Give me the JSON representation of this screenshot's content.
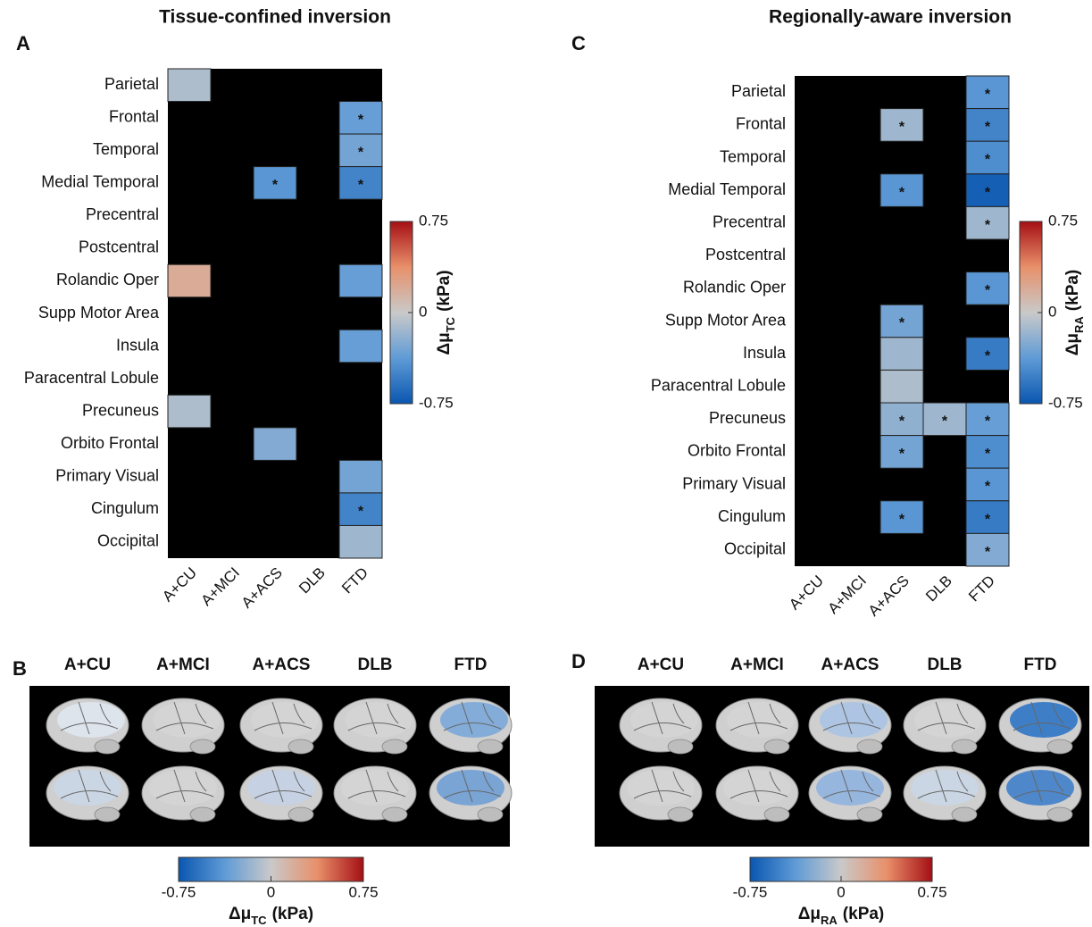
{
  "chart_data": [
    {
      "type": "heatmap",
      "panel_letter": "A",
      "title": "Tissue-confined inversion",
      "categories": [
        "A+CU",
        "A+MCI",
        "A+ACS",
        "DLB",
        "FTD"
      ],
      "rows": [
        "Parietal",
        "Frontal",
        "Temporal",
        "Medial Temporal",
        "Precentral",
        "Postcentral",
        "Rolandic Oper",
        "Supp Motor Area",
        "Insula",
        "Paracentral Lobule",
        "Precuneus",
        "Orbito Frontal",
        "Primary Visual",
        "Cingulum",
        "Occipital"
      ],
      "values": [
        [
          -0.1,
          null,
          null,
          null,
          null
        ],
        [
          null,
          null,
          null,
          null,
          -0.35
        ],
        [
          null,
          null,
          null,
          null,
          -0.3
        ],
        [
          null,
          null,
          -0.4,
          null,
          -0.5
        ],
        [
          null,
          null,
          null,
          null,
          null
        ],
        [
          null,
          null,
          null,
          null,
          null
        ],
        [
          0.2,
          null,
          null,
          null,
          -0.35
        ],
        [
          null,
          null,
          null,
          null,
          null
        ],
        [
          null,
          null,
          null,
          null,
          -0.35
        ],
        [
          null,
          null,
          null,
          null,
          null
        ],
        [
          -0.1,
          null,
          null,
          null,
          null
        ],
        [
          null,
          null,
          -0.25,
          null,
          null
        ],
        [
          null,
          null,
          null,
          null,
          -0.3
        ],
        [
          null,
          null,
          null,
          null,
          -0.5
        ],
        [
          null,
          null,
          null,
          null,
          -0.15
        ]
      ],
      "annotations": [
        [
          null,
          null,
          null,
          null,
          null
        ],
        [
          null,
          null,
          null,
          null,
          "*"
        ],
        [
          null,
          null,
          null,
          null,
          "*"
        ],
        [
          null,
          null,
          "*",
          null,
          "*"
        ],
        [
          null,
          null,
          null,
          null,
          null
        ],
        [
          null,
          null,
          null,
          null,
          null
        ],
        [
          null,
          null,
          null,
          null,
          null
        ],
        [
          null,
          null,
          null,
          null,
          null
        ],
        [
          null,
          null,
          null,
          null,
          null
        ],
        [
          null,
          null,
          null,
          null,
          null
        ],
        [
          null,
          null,
          null,
          null,
          null
        ],
        [
          null,
          null,
          null,
          null,
          null
        ],
        [
          null,
          null,
          null,
          null,
          null
        ],
        [
          null,
          null,
          null,
          null,
          "*"
        ],
        [
          null,
          null,
          null,
          null,
          null
        ]
      ],
      "colormap": [
        "#0a56b0",
        "#5f9bd6",
        "#c9c9c9",
        "#e8906a",
        "#a50f15"
      ],
      "colorbar": {
        "lim": [
          -0.75,
          0.75
        ],
        "ticks": [
          0.75,
          0,
          -0.75
        ],
        "label_main": "Δμ",
        "label_sub": "TC",
        "label_unit": "(kPa)"
      }
    },
    {
      "type": "heatmap",
      "panel_letter": "C",
      "title": "Regionally-aware inversion",
      "categories": [
        "A+CU",
        "A+MCI",
        "A+ACS",
        "DLB",
        "FTD"
      ],
      "rows": [
        "Parietal",
        "Frontal",
        "Temporal",
        "Medial Temporal",
        "Precentral",
        "Postcentral",
        "Rolandic Oper",
        "Supp Motor Area",
        "Insula",
        "Paracentral Lobule",
        "Precuneus",
        "Orbito Frontal",
        "Primary Visual",
        "Cingulum",
        "Occipital"
      ],
      "values": [
        [
          null,
          null,
          null,
          null,
          -0.4
        ],
        [
          null,
          null,
          -0.15,
          null,
          -0.5
        ],
        [
          null,
          null,
          null,
          null,
          -0.45
        ],
        [
          null,
          null,
          -0.4,
          null,
          -0.7
        ],
        [
          null,
          null,
          null,
          null,
          -0.15
        ],
        [
          null,
          null,
          null,
          null,
          null
        ],
        [
          null,
          null,
          null,
          null,
          -0.4
        ],
        [
          null,
          null,
          -0.3,
          null,
          null
        ],
        [
          null,
          null,
          -0.15,
          null,
          -0.55
        ],
        [
          null,
          null,
          -0.1,
          null,
          null
        ],
        [
          null,
          null,
          -0.2,
          -0.15,
          -0.35
        ],
        [
          null,
          null,
          -0.3,
          null,
          -0.45
        ],
        [
          null,
          null,
          null,
          null,
          -0.4
        ],
        [
          null,
          null,
          -0.4,
          null,
          -0.55
        ],
        [
          null,
          null,
          null,
          null,
          -0.25
        ]
      ],
      "annotations": [
        [
          null,
          null,
          null,
          null,
          "*"
        ],
        [
          null,
          null,
          "*",
          null,
          "*"
        ],
        [
          null,
          null,
          null,
          null,
          "*"
        ],
        [
          null,
          null,
          "*",
          null,
          "*"
        ],
        [
          null,
          null,
          null,
          null,
          "*"
        ],
        [
          null,
          null,
          null,
          null,
          null
        ],
        [
          null,
          null,
          null,
          null,
          "*"
        ],
        [
          null,
          null,
          "*",
          null,
          null
        ],
        [
          null,
          null,
          null,
          null,
          "*"
        ],
        [
          null,
          null,
          null,
          null,
          null
        ],
        [
          null,
          null,
          "*",
          "*",
          "*"
        ],
        [
          null,
          null,
          "*",
          null,
          "*"
        ],
        [
          null,
          null,
          null,
          null,
          "*"
        ],
        [
          null,
          null,
          "*",
          null,
          "*"
        ],
        [
          null,
          null,
          null,
          null,
          "*"
        ]
      ],
      "colormap": [
        "#0a56b0",
        "#5f9bd6",
        "#c9c9c9",
        "#e8906a",
        "#a50f15"
      ],
      "colorbar": {
        "lim": [
          -0.75,
          0.75
        ],
        "ticks": [
          0.75,
          0,
          -0.75
        ],
        "label_main": "Δμ",
        "label_sub": "RA",
        "label_unit": "(kPa)"
      }
    }
  ],
  "brain_panels": [
    {
      "panel_letter": "B",
      "columns": [
        "A+CU",
        "A+MCI",
        "A+ACS",
        "DLB",
        "FTD"
      ],
      "colormap": [
        "#0a56b0",
        "#5f9bd6",
        "#c9c9c9",
        "#e8906a",
        "#a50f15"
      ],
      "colorbar": {
        "lim": [
          -0.75,
          0.75
        ],
        "ticks": [
          -0.75,
          0,
          0.75
        ],
        "label_main": "Δμ",
        "label_sub": "TC",
        "label_unit": "(kPa)"
      }
    },
    {
      "panel_letter": "D",
      "columns": [
        "A+CU",
        "A+MCI",
        "A+ACS",
        "DLB",
        "FTD"
      ],
      "colormap": [
        "#0a56b0",
        "#5f9bd6",
        "#c9c9c9",
        "#e8906a",
        "#a50f15"
      ],
      "colorbar": {
        "lim": [
          -0.75,
          0.75
        ],
        "ticks": [
          -0.75,
          0,
          0.75
        ],
        "label_main": "Δμ",
        "label_sub": "RA",
        "label_unit": "(kPa)"
      }
    }
  ]
}
